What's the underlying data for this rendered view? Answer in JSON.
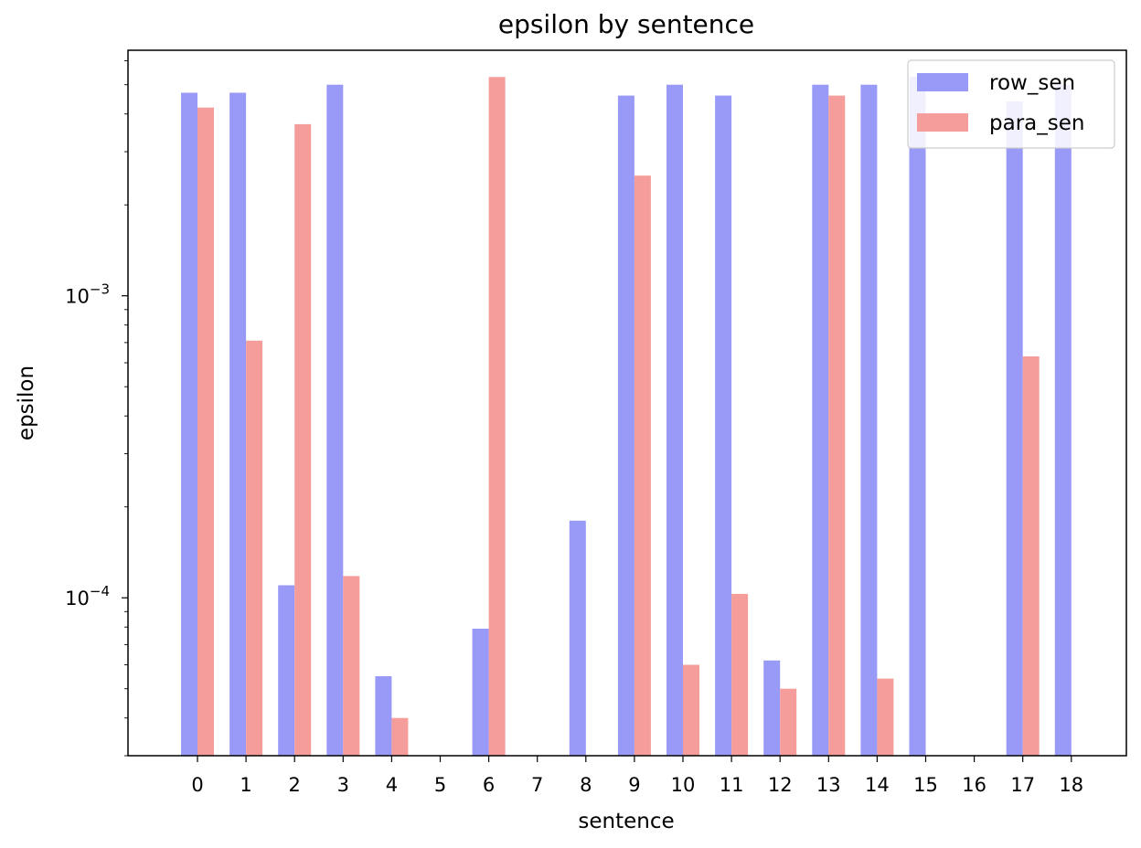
{
  "chart_data": {
    "type": "bar",
    "title": "epsilon by sentence",
    "xlabel": "sentence",
    "ylabel": "epsilon",
    "y_scale": "log",
    "ylim": [
      3e-05,
      0.0065
    ],
    "y_ticks": [
      {
        "value": 0.001,
        "base": "10",
        "exp": "−3"
      },
      {
        "value": 0.0001,
        "base": "10",
        "exp": "−4"
      }
    ],
    "categories": [
      "0",
      "1",
      "2",
      "3",
      "4",
      "5",
      "6",
      "7",
      "8",
      "9",
      "10",
      "11",
      "12",
      "13",
      "14",
      "15",
      "16",
      "17",
      "18"
    ],
    "series": [
      {
        "name": "row_sen",
        "color": "#9999f7",
        "values": [
          0.0047,
          0.0047,
          0.00011,
          0.005,
          5.5e-05,
          null,
          7.9e-05,
          null,
          0.00018,
          0.0046,
          0.005,
          0.0046,
          6.2e-05,
          0.005,
          0.005,
          0.0053,
          null,
          0.0044,
          0.005
        ]
      },
      {
        "name": "para_sen",
        "color": "#f49d9a",
        "values": [
          0.0042,
          0.00071,
          0.0037,
          0.000118,
          4e-05,
          null,
          0.0053,
          null,
          null,
          0.0025,
          6e-05,
          0.000103,
          5e-05,
          0.0046,
          5.4e-05,
          null,
          null,
          0.00063,
          null
        ]
      }
    ],
    "legend": {
      "position": "top-right"
    },
    "grid": false
  }
}
